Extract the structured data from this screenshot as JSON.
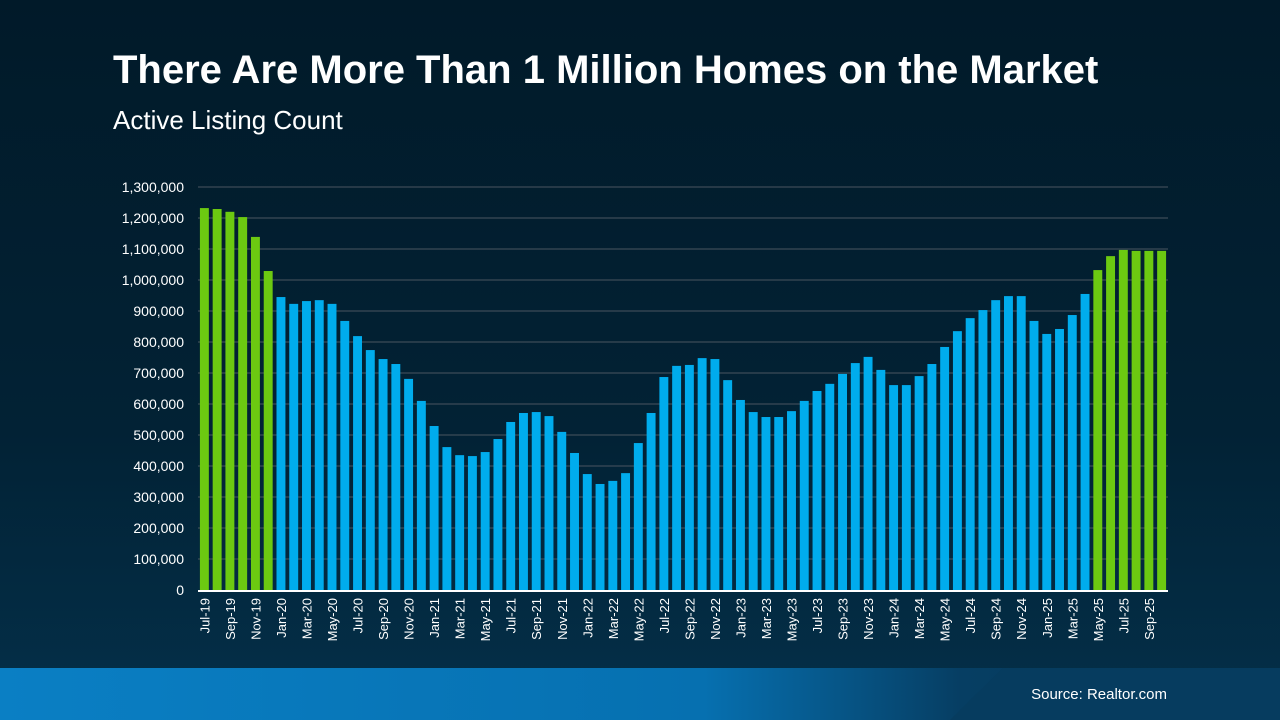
{
  "chart_data": {
    "type": "bar",
    "title": "There Are More Than 1 Million Homes on the Market",
    "subtitle": "Active Listing Count",
    "xlabel": "",
    "ylabel": "",
    "ylim": [
      0,
      1300000
    ],
    "yticks": [
      0,
      100000,
      200000,
      300000,
      400000,
      500000,
      600000,
      700000,
      800000,
      900000,
      1000000,
      1100000,
      1200000,
      1300000
    ],
    "ytick_labels": [
      "0",
      "100,000",
      "200,000",
      "300,000",
      "400,000",
      "500,000",
      "600,000",
      "700,000",
      "800,000",
      "900,000",
      "1,000,000",
      "1,100,000",
      "1,200,000",
      "1,300,000"
    ],
    "grid": true,
    "colors": {
      "highlight": "#6cc911",
      "default": "#00aced"
    },
    "categories": [
      "Jul-19",
      "Aug-19",
      "Sep-19",
      "Oct-19",
      "Nov-19",
      "Dec-19",
      "Jan-20",
      "Feb-20",
      "Mar-20",
      "Apr-20",
      "May-20",
      "Jun-20",
      "Jul-20",
      "Aug-20",
      "Sep-20",
      "Oct-20",
      "Nov-20",
      "Dec-20",
      "Jan-21",
      "Feb-21",
      "Mar-21",
      "Apr-21",
      "May-21",
      "Jun-21",
      "Jul-21",
      "Aug-21",
      "Sep-21",
      "Oct-21",
      "Nov-21",
      "Dec-21",
      "Jan-22",
      "Feb-22",
      "Mar-22",
      "Apr-22",
      "May-22",
      "Jun-22",
      "Jul-22",
      "Aug-22",
      "Sep-22",
      "Oct-22",
      "Nov-22",
      "Dec-22",
      "Jan-23",
      "Feb-23",
      "Mar-23",
      "Apr-23",
      "May-23",
      "Jun-23",
      "Jul-23",
      "Aug-23",
      "Sep-23",
      "Oct-23",
      "Nov-23",
      "Dec-23",
      "Jan-24",
      "Feb-24",
      "Mar-24",
      "Apr-24",
      "May-24",
      "Jun-24",
      "Jul-24",
      "Aug-24",
      "Sep-24",
      "Oct-24",
      "Nov-24",
      "Dec-24",
      "Jan-25",
      "Feb-25",
      "Mar-25",
      "Apr-25",
      "May-25",
      "Jun-25",
      "Jul-25",
      "Aug-25",
      "Sep-25",
      "Oct-25"
    ],
    "values": [
      1232000,
      1229000,
      1220000,
      1203000,
      1139000,
      1029000,
      945000,
      923000,
      932000,
      935000,
      923000,
      868000,
      819000,
      774000,
      745000,
      729000,
      681000,
      610000,
      529000,
      461000,
      435000,
      432000,
      445000,
      487000,
      542000,
      571000,
      574000,
      561000,
      510000,
      442000,
      374000,
      342000,
      352000,
      377000,
      474000,
      571000,
      687000,
      723000,
      726000,
      748000,
      745000,
      677000,
      613000,
      574000,
      558000,
      558000,
      577000,
      610000,
      642000,
      665000,
      697000,
      732000,
      752000,
      710000,
      661000,
      661000,
      690000,
      729000,
      784000,
      835000,
      877000,
      903000,
      935000,
      948000,
      948000,
      868000,
      826000,
      842000,
      887000,
      955000,
      1032000,
      1077000,
      1097000,
      1094000,
      1094000,
      1094000
    ],
    "highlighted": [
      "Jul-19",
      "Aug-19",
      "Sep-19",
      "Oct-19",
      "Nov-19",
      "Dec-19",
      "May-25",
      "Jun-25",
      "Jul-25",
      "Aug-25",
      "Sep-25",
      "Oct-25"
    ],
    "xtick_labels": [
      "Jul-19",
      "Sep-19",
      "Nov-19",
      "Jan-20",
      "Mar-20",
      "May-20",
      "Jul-20",
      "Sep-20",
      "Nov-20",
      "Jan-21",
      "Mar-21",
      "May-21",
      "Jul-21",
      "Sep-21",
      "Nov-21",
      "Jan-22",
      "Mar-22",
      "May-22",
      "Jul-22",
      "Sep-22",
      "Nov-22",
      "Jan-23",
      "Mar-23",
      "May-23",
      "Jul-23",
      "Sep-23",
      "Nov-23",
      "Jan-24",
      "Mar-24",
      "May-24",
      "Jul-24",
      "Sep-24",
      "Nov-24",
      "Jan-25",
      "Mar-25",
      "May-25",
      "Jul-25",
      "Sep-25"
    ]
  },
  "footer": {
    "source": "Source: Realtor.com"
  }
}
